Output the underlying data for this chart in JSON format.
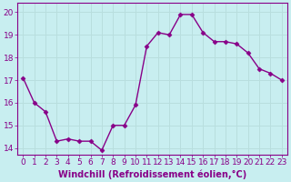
{
  "x": [
    0,
    1,
    2,
    3,
    4,
    5,
    6,
    7,
    8,
    9,
    10,
    11,
    12,
    13,
    14,
    15,
    16,
    17,
    18,
    19,
    20,
    21,
    22,
    23
  ],
  "y": [
    17.1,
    16.0,
    15.6,
    14.3,
    14.4,
    14.3,
    14.3,
    13.9,
    15.0,
    15.0,
    15.9,
    18.5,
    19.1,
    19.0,
    19.9,
    19.9,
    19.1,
    18.7,
    18.7,
    18.6,
    18.2,
    17.5,
    17.3,
    17.0
  ],
  "line_color": "#880088",
  "marker": "D",
  "marker_size": 2.5,
  "bg_color": "#c8eef0",
  "grid_color": "#aadddd",
  "xlabel": "Windchill (Refroidissement éolien,°C)",
  "xlabel_color": "#880088",
  "ylabel_ticks": [
    14,
    15,
    16,
    17,
    18,
    19,
    20
  ],
  "xtick_labels": [
    "0",
    "1",
    "2",
    "3",
    "4",
    "5",
    "6",
    "7",
    "8",
    "9",
    "10",
    "11",
    "12",
    "13",
    "14",
    "15",
    "16",
    "17",
    "18",
    "19",
    "20",
    "21",
    "22",
    "23"
  ],
  "ylim": [
    13.7,
    20.4
  ],
  "xlim": [
    -0.5,
    23.5
  ],
  "tick_color": "#880088",
  "tick_fontsize": 6.5,
  "xlabel_fontsize": 7,
  "linewidth": 1.0
}
